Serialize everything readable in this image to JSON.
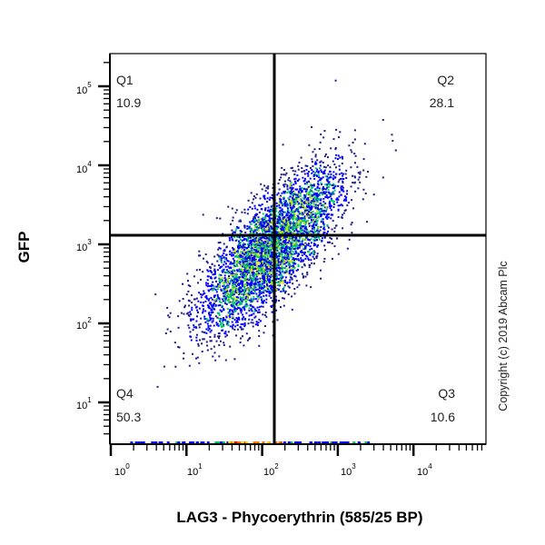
{
  "chart_data": {
    "type": "scatter",
    "subtype": "flow-cytometry-quadrant-dot-plot",
    "title": "",
    "xlabel": "LAG3 - Phycoerythrin (585/25 BP)",
    "ylabel": "GFP",
    "xscale": "log",
    "yscale": "log",
    "x_ticks": [
      "10^0",
      "10^1",
      "10^2",
      "10^3",
      "10^4"
    ],
    "y_ticks": [
      "10^1",
      "10^2",
      "10^3",
      "10^4",
      "10^5"
    ],
    "xlim_log10": [
      0,
      5
    ],
    "ylim_log10": [
      0.5,
      5.4
    ],
    "grid": false,
    "legend": null,
    "gates": {
      "x_threshold_log10": 2.16,
      "y_threshold_log10": 3.1
    },
    "quadrants": [
      {
        "id": "Q1",
        "label": "Q1",
        "percent": 10.9,
        "position": "top-left"
      },
      {
        "id": "Q2",
        "label": "Q2",
        "percent": 28.1,
        "position": "top-right"
      },
      {
        "id": "Q3",
        "label": "Q3",
        "percent": 10.6,
        "position": "bottom-right"
      },
      {
        "id": "Q4",
        "label": "Q4",
        "percent": 50.3,
        "position": "bottom-left"
      }
    ],
    "population": {
      "center_log10": [
        2.1,
        2.95
      ],
      "spread_log10": [
        0.45,
        0.5
      ],
      "correlation": 0.75,
      "approx_events": 4500
    },
    "density_colors": [
      "#1c1c8c",
      "#0000ff",
      "#00c864",
      "#c8e600",
      "#ffd200",
      "#ff6a00",
      "#e60000"
    ],
    "annotations": [
      "Copyright (c) 2019 Abcam Plc"
    ]
  },
  "quadrant_labels": {
    "q1": {
      "name": "Q1",
      "value": "10.9"
    },
    "q2": {
      "name": "Q2",
      "value": "28.1"
    },
    "q3": {
      "name": "Q3",
      "value": "10.6"
    },
    "q4": {
      "name": "Q4",
      "value": "50.3"
    }
  },
  "axes": {
    "x_title": "LAG3 - Phycoerythrin (585/25 BP)",
    "y_title": "GFP",
    "x_tick_bases": [
      "10",
      "10",
      "10",
      "10",
      "10"
    ],
    "x_tick_exps": [
      "0",
      "1",
      "2",
      "3",
      "4"
    ],
    "y_tick_bases": [
      "10",
      "10",
      "10",
      "10",
      "10"
    ],
    "y_tick_exps": [
      "5",
      "4",
      "3",
      "2",
      "1"
    ]
  },
  "copyright": "Copyright (c) 2019 Abcam Plc"
}
